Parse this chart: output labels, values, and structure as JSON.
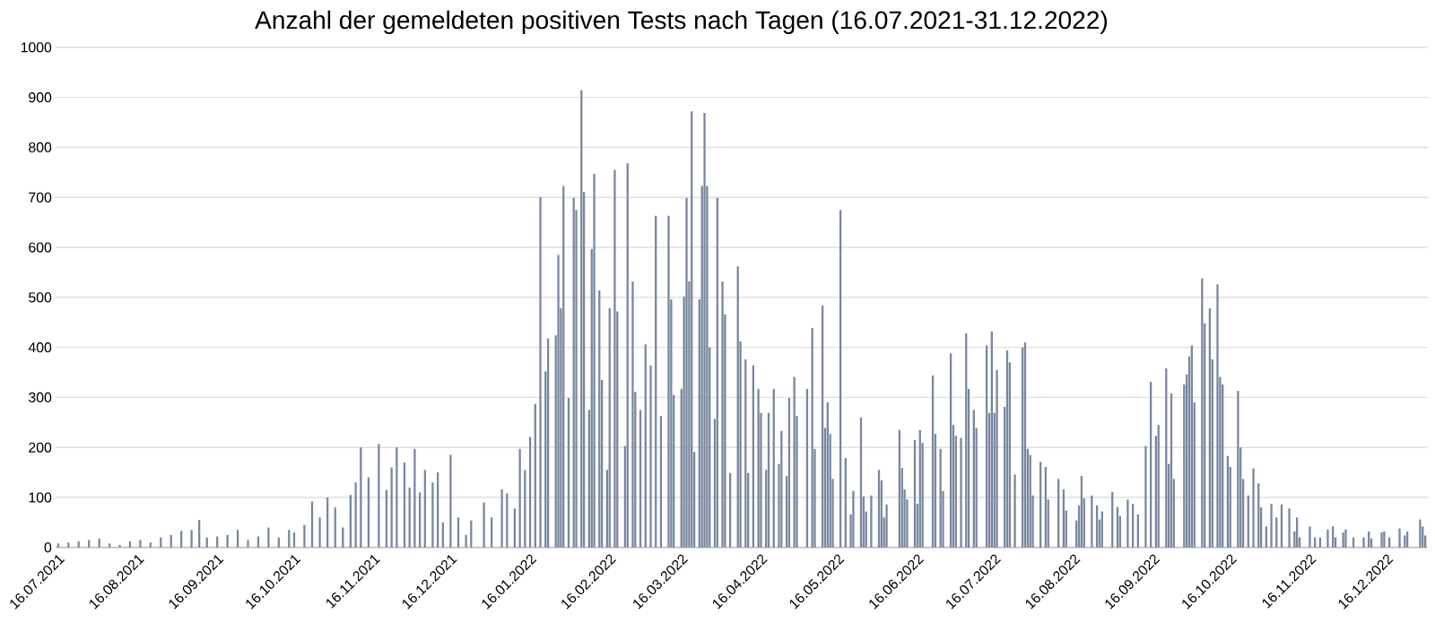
{
  "chart_data": {
    "type": "bar",
    "title": "Anzahl der gemeldeten positiven Tests nach Tagen (16.07.2021-31.12.2022)",
    "x": [
      "2021-07-16",
      "2021-07-20",
      "2021-07-24",
      "2021-07-28",
      "2021-08-01",
      "2021-08-05",
      "2021-08-09",
      "2021-08-13",
      "2021-08-17",
      "2021-08-21",
      "2021-08-25",
      "2021-08-29",
      "2021-09-02",
      "2021-09-06",
      "2021-09-09",
      "2021-09-12",
      "2021-09-16",
      "2021-09-20",
      "2021-09-24",
      "2021-09-28",
      "2021-10-02",
      "2021-10-06",
      "2021-10-10",
      "2021-10-14",
      "2021-10-16",
      "2021-10-20",
      "2021-10-23",
      "2021-10-26",
      "2021-10-29",
      "2021-11-01",
      "2021-11-04",
      "2021-11-07",
      "2021-11-09",
      "2021-11-11",
      "2021-11-14",
      "2021-11-18",
      "2021-11-21",
      "2021-11-23",
      "2021-11-25",
      "2021-11-28",
      "2021-11-30",
      "2021-12-02",
      "2021-12-04",
      "2021-12-06",
      "2021-12-09",
      "2021-12-11",
      "2021-12-13",
      "2021-12-16",
      "2021-12-19",
      "2021-12-22",
      "2021-12-24",
      "2021-12-29",
      "2022-01-01",
      "2022-01-05",
      "2022-01-07",
      "2022-01-10",
      "2022-01-12",
      "2022-01-14",
      "2022-01-16",
      "2022-01-18",
      "2022-01-20",
      "2022-01-22",
      "2022-01-23",
      "2022-01-26",
      "2022-01-27",
      "2022-01-28",
      "2022-01-29",
      "2022-01-31",
      "2022-02-02",
      "2022-02-03",
      "2022-02-05",
      "2022-02-06",
      "2022-02-08",
      "2022-02-09",
      "2022-02-10",
      "2022-02-12",
      "2022-02-13",
      "2022-02-15",
      "2022-02-16",
      "2022-02-18",
      "2022-02-19",
      "2022-02-22",
      "2022-02-23",
      "2022-02-25",
      "2022-02-26",
      "2022-02-28",
      "2022-03-02",
      "2022-03-04",
      "2022-03-06",
      "2022-03-08",
      "2022-03-11",
      "2022-03-12",
      "2022-03-13",
      "2022-03-16",
      "2022-03-17",
      "2022-03-18",
      "2022-03-19",
      "2022-03-20",
      "2022-03-21",
      "2022-03-23",
      "2022-03-24",
      "2022-03-25",
      "2022-03-26",
      "2022-03-27",
      "2022-03-29",
      "2022-03-30",
      "2022-04-01",
      "2022-04-02",
      "2022-04-04",
      "2022-04-07",
      "2022-04-08",
      "2022-04-10",
      "2022-04-11",
      "2022-04-13",
      "2022-04-15",
      "2022-04-16",
      "2022-04-18",
      "2022-04-19",
      "2022-04-21",
      "2022-04-23",
      "2022-04-24",
      "2022-04-26",
      "2022-04-27",
      "2022-04-29",
      "2022-04-30",
      "2022-05-04",
      "2022-05-06",
      "2022-05-07",
      "2022-05-10",
      "2022-05-11",
      "2022-05-12",
      "2022-05-13",
      "2022-05-14",
      "2022-05-17",
      "2022-05-19",
      "2022-05-21",
      "2022-05-22",
      "2022-05-25",
      "2022-05-26",
      "2022-05-27",
      "2022-05-29",
      "2022-06-01",
      "2022-06-02",
      "2022-06-03",
      "2022-06-04",
      "2022-06-09",
      "2022-06-10",
      "2022-06-11",
      "2022-06-12",
      "2022-06-15",
      "2022-06-16",
      "2022-06-17",
      "2022-06-18",
      "2022-06-22",
      "2022-06-23",
      "2022-06-25",
      "2022-06-26",
      "2022-06-29",
      "2022-06-30",
      "2022-07-01",
      "2022-07-03",
      "2022-07-05",
      "2022-07-06",
      "2022-07-08",
      "2022-07-09",
      "2022-07-13",
      "2022-07-14",
      "2022-07-15",
      "2022-07-16",
      "2022-07-17",
      "2022-07-20",
      "2022-07-21",
      "2022-07-22",
      "2022-07-24",
      "2022-07-27",
      "2022-07-28",
      "2022-07-29",
      "2022-07-30",
      "2022-07-31",
      "2022-08-03",
      "2022-08-05",
      "2022-08-06",
      "2022-08-10",
      "2022-08-12",
      "2022-08-13",
      "2022-08-17",
      "2022-08-18",
      "2022-08-19",
      "2022-08-20",
      "2022-08-23",
      "2022-08-25",
      "2022-08-26",
      "2022-08-27",
      "2022-08-31",
      "2022-09-02",
      "2022-09-03",
      "2022-09-06",
      "2022-09-08",
      "2022-09-10",
      "2022-09-13",
      "2022-09-15",
      "2022-09-17",
      "2022-09-18",
      "2022-09-21",
      "2022-09-22",
      "2022-09-23",
      "2022-09-24",
      "2022-09-28",
      "2022-09-29",
      "2022-09-30",
      "2022-10-01",
      "2022-10-02",
      "2022-10-05",
      "2022-10-06",
      "2022-10-08",
      "2022-10-09",
      "2022-10-11",
      "2022-10-12",
      "2022-10-13",
      "2022-10-15",
      "2022-10-16",
      "2022-10-19",
      "2022-10-20",
      "2022-10-21",
      "2022-10-23",
      "2022-10-25",
      "2022-10-27",
      "2022-10-28",
      "2022-10-30",
      "2022-11-01",
      "2022-11-03",
      "2022-11-05",
      "2022-11-08",
      "2022-11-10",
      "2022-11-11",
      "2022-11-12",
      "2022-11-16",
      "2022-11-18",
      "2022-11-20",
      "2022-11-23",
      "2022-11-25",
      "2022-11-26",
      "2022-11-29",
      "2022-11-30",
      "2022-12-03",
      "2022-12-07",
      "2022-12-09",
      "2022-12-10",
      "2022-12-14",
      "2022-12-15",
      "2022-12-17",
      "2022-12-21",
      "2022-12-23",
      "2022-12-24",
      "2022-12-29",
      "2022-12-30",
      "2022-12-31"
    ],
    "values": [
      8,
      10,
      12,
      15,
      18,
      8,
      5,
      12,
      15,
      10,
      20,
      25,
      33,
      35,
      55,
      20,
      22,
      25,
      35,
      15,
      22,
      40,
      20,
      35,
      30,
      45,
      92,
      60,
      100,
      80,
      40,
      105,
      130,
      200,
      140,
      207,
      115,
      160,
      200,
      170,
      120,
      197,
      110,
      155,
      130,
      150,
      50,
      185,
      60,
      25,
      54,
      90,
      60,
      116,
      108,
      78,
      197,
      155,
      221,
      287,
      701,
      352,
      418,
      424,
      585,
      478,
      723,
      299,
      699,
      675,
      914,
      711,
      275,
      597,
      747,
      514,
      335,
      155,
      478,
      755,
      472,
      203,
      768,
      532,
      311,
      275,
      406,
      364,
      663,
      263,
      663,
      496,
      305,
      317,
      502,
      699,
      532,
      872,
      191,
      496,
      723,
      869,
      723,
      400,
      257,
      699,
      532,
      466,
      149,
      562,
      412,
      376,
      149,
      364,
      317,
      269,
      155,
      269,
      317,
      167,
      233,
      143,
      299,
      341,
      263,
      317,
      439,
      197,
      484,
      239,
      290,
      227,
      137,
      675,
      179,
      66,
      113,
      260,
      102,
      72,
      104,
      155,
      134,
      60,
      86,
      235,
      159,
      116,
      96,
      215,
      87,
      235,
      209,
      344,
      227,
      197,
      113,
      388,
      245,
      223,
      219,
      428,
      317,
      275,
      239,
      404,
      269,
      432,
      269,
      355,
      281,
      394,
      370,
      146,
      400,
      410,
      197,
      185,
      104,
      171,
      161,
      96,
      137,
      116,
      74,
      54,
      84,
      143,
      98,
      104,
      84,
      56,
      72,
      111,
      81,
      63,
      96,
      87,
      66,
      203,
      331,
      223,
      245,
      358,
      167,
      308,
      137,
      326,
      346,
      382,
      404,
      290,
      538,
      448,
      478,
      376,
      526,
      341,
      326,
      183,
      161,
      313,
      200,
      137,
      104,
      158,
      128,
      80,
      42,
      87,
      60,
      86,
      78,
      32,
      60,
      20,
      42,
      20,
      20,
      36,
      42,
      20,
      30,
      36,
      20,
      20,
      32,
      18,
      30,
      32,
      20,
      38,
      24,
      32,
      56,
      42,
      24
    ],
    "color": "#7a869e",
    "xlim": [
      "2021-07-15",
      "2023-01-01"
    ],
    "xticks": [
      {
        "value": "2021-07-16",
        "label": "16.07.2021"
      },
      {
        "value": "2021-08-16",
        "label": "16.08.2021"
      },
      {
        "value": "2021-09-16",
        "label": "16.09.2021"
      },
      {
        "value": "2021-10-16",
        "label": "16.10.2021"
      },
      {
        "value": "2021-11-16",
        "label": "16.11.2021"
      },
      {
        "value": "2021-12-16",
        "label": "16.12.2021"
      },
      {
        "value": "2022-01-16",
        "label": "16.01.2022"
      },
      {
        "value": "2022-02-16",
        "label": "16.02.2022"
      },
      {
        "value": "2022-03-16",
        "label": "16.03.2022"
      },
      {
        "value": "2022-04-16",
        "label": "16.04.2022"
      },
      {
        "value": "2022-05-16",
        "label": "16.05.2022"
      },
      {
        "value": "2022-06-16",
        "label": "16.06.2022"
      },
      {
        "value": "2022-07-16",
        "label": "16.07.2022"
      },
      {
        "value": "2022-08-16",
        "label": "16.08.2022"
      },
      {
        "value": "2022-09-16",
        "label": "16.09.2022"
      },
      {
        "value": "2022-10-16",
        "label": "16.10.2022"
      },
      {
        "value": "2022-11-16",
        "label": "16.11.2022"
      },
      {
        "value": "2022-12-16",
        "label": "16.12.2022"
      }
    ],
    "ylim": [
      0,
      1000
    ],
    "yticks": [
      0,
      100,
      200,
      300,
      400,
      500,
      600,
      700,
      800,
      900,
      1000
    ],
    "grid": "y"
  }
}
